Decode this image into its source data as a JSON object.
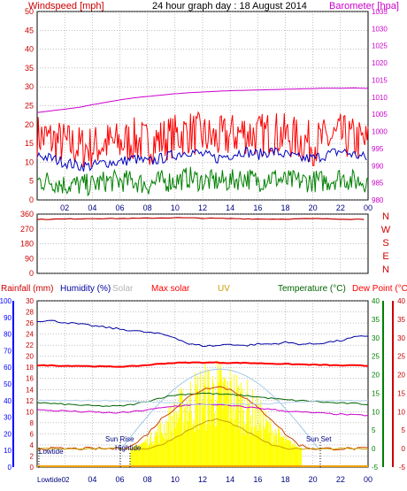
{
  "header": {
    "windspeed_label": "Windspeed [mph]",
    "title": "24 hour graph day : 18 August 2014",
    "barometer_label": "Barometer [hpa]"
  },
  "colors": {
    "wind_gust": "#ff0000",
    "wind_avg": "#0000c0",
    "wind_low": "#008000",
    "barometer": "#cc00cc",
    "direction": "#c00000",
    "humidity": "#0000a0",
    "solar": "#b4b4b4",
    "max_solar": "#ff0000",
    "uv": "#c8a000",
    "temperature": "#006400",
    "dew_point": "#ff0000",
    "rain_axis": "#0000ff",
    "solar_fill": "#ffff00",
    "panel_bg": "#ffffff",
    "grid": "#808080"
  },
  "x_hours": [
    "02",
    "04",
    "06",
    "08",
    "10",
    "12",
    "14",
    "16",
    "18",
    "20",
    "22",
    "00"
  ],
  "chart_data": [
    {
      "type": "line",
      "panel": "wind_barometer",
      "title": "24 hour graph day : 18 August 2014",
      "ylabel_left": "Windspeed [mph]",
      "ylabel_right": "Barometer [hpa]",
      "y_left_ticks": [
        "0",
        "5",
        "10",
        "15",
        "20",
        "25",
        "30",
        "35",
        "40",
        "45",
        "50"
      ],
      "y_right_ticks": [
        "980",
        "985",
        "990",
        "995",
        "1000",
        "1005",
        "1010",
        "1015",
        "1020",
        "1025",
        "1030",
        "1035"
      ],
      "ylim_left": [
        0,
        50
      ],
      "ylim_right": [
        980,
        1035
      ],
      "x": [
        0,
        1,
        2,
        3,
        4,
        5,
        6,
        7,
        8,
        9,
        10,
        11,
        12,
        13,
        14,
        15,
        16,
        17,
        18,
        19,
        20,
        21,
        22,
        23,
        24
      ],
      "series": [
        {
          "name": "",
          "color_key": "barometer",
          "axis": "right",
          "values": [
            1005.5,
            1006,
            1006.5,
            1007,
            1007.8,
            1008.5,
            1009.2,
            1009.8,
            1010.2,
            1010.6,
            1011,
            1011.3,
            1011.5,
            1011.7,
            1011.9,
            1012,
            1012.1,
            1012.2,
            1012.3,
            1012.4,
            1012.5,
            1012.6,
            1012.6,
            1012.7,
            1012.5
          ]
        },
        {
          "name": "",
          "color_key": "wind_gust",
          "axis": "left",
          "values": [
            17,
            16,
            15,
            14,
            14,
            15,
            15,
            16,
            15,
            16,
            17,
            18,
            17,
            16,
            17,
            18,
            17,
            18,
            17,
            16,
            15,
            16,
            17,
            16,
            15
          ]
        },
        {
          "name": "",
          "color_key": "wind_avg",
          "axis": "left",
          "values": [
            12,
            11,
            10,
            9,
            9,
            10,
            10,
            11,
            10,
            11,
            12,
            13,
            12,
            11,
            12,
            13,
            12,
            13,
            12,
            11,
            11,
            12,
            13,
            12,
            11
          ]
        },
        {
          "name": "",
          "color_key": "wind_low",
          "axis": "left",
          "values": [
            5,
            5,
            4,
            4,
            4,
            5,
            5,
            5,
            4,
            5,
            5,
            6,
            5,
            5,
            5,
            6,
            5,
            6,
            5,
            5,
            5,
            5,
            6,
            5,
            5
          ]
        }
      ]
    },
    {
      "type": "line",
      "panel": "wind_direction",
      "y_left_ticks": [
        "0",
        "90",
        "180",
        "270",
        "360"
      ],
      "y_right_labels": [
        "N",
        "W",
        "S",
        "E",
        "N"
      ],
      "ylim": [
        0,
        360
      ],
      "x": [
        0,
        2,
        4,
        6,
        8,
        10,
        12,
        14,
        16,
        18,
        20,
        22,
        24
      ],
      "series": [
        {
          "name": "",
          "color_key": "direction",
          "values": [
            328,
            330,
            333,
            333,
            335,
            338,
            335,
            333,
            330,
            330,
            332,
            330,
            328
          ]
        }
      ]
    },
    {
      "type": "area",
      "panel": "rain_humidity_solar_temp",
      "legend": [
        "Rainfall (mm)",
        "Humidity (%)",
        "Solar",
        "Max solar",
        "UV",
        "Temperature (°C)",
        "Dew Point (°C)"
      ],
      "y_rain_ticks": [
        "0",
        "10",
        "20",
        "30",
        "40",
        "50",
        "60",
        "70",
        "80",
        "90",
        "100"
      ],
      "y_humidity_ticks": [
        "0",
        "2",
        "4",
        "6",
        "8",
        "10",
        "12",
        "14",
        "16",
        "18",
        "20",
        "22",
        "24",
        "26",
        "28",
        "30"
      ],
      "y_temp_ticks": [
        "-5",
        "0",
        "5",
        "10",
        "15",
        "20",
        "25",
        "30",
        "35",
        "40"
      ],
      "y_dew_ticks": [
        "-5",
        "0",
        "5",
        "10",
        "15",
        "20",
        "25",
        "30",
        "35",
        "40"
      ],
      "ylim_humidity": [
        0,
        100
      ],
      "ylim_temp": [
        -5,
        40
      ],
      "annotations": [
        "Lowtide",
        "Lowtide02",
        "Sun Rise",
        "Hightide",
        "Sun Set"
      ],
      "x": [
        0,
        1,
        2,
        3,
        4,
        5,
        6,
        7,
        8,
        9,
        10,
        11,
        12,
        13,
        14,
        15,
        16,
        17,
        18,
        19,
        20,
        21,
        22,
        23,
        24
      ],
      "series": [
        {
          "name": "Humidity (%)",
          "color_key": "humidity",
          "values": [
            88,
            88,
            87,
            86,
            85,
            84,
            83,
            82,
            81,
            80,
            78,
            74,
            73,
            73,
            74,
            73,
            74,
            74,
            75,
            74,
            74,
            75,
            76,
            78,
            79
          ]
        },
        {
          "name": "Temperature (°C)",
          "color_key": "temperature",
          "values": [
            12.5,
            12.2,
            12,
            11.8,
            11.6,
            11.5,
            11.5,
            12,
            12.8,
            13.8,
            14.5,
            14.8,
            15,
            14.8,
            14.6,
            14.4,
            14,
            13.6,
            13.2,
            13,
            12.8,
            12.5,
            12.3,
            12.2,
            12
          ]
        },
        {
          "name": "Dew Point (°C)",
          "color_key": "dew_point",
          "values": [
            22.5,
            22.5,
            22.4,
            22.4,
            22.3,
            22.2,
            22.2,
            22.3,
            22.6,
            23,
            23.2,
            23.3,
            23.3,
            23.3,
            23.2,
            23.2,
            23.1,
            23,
            22.9,
            22.8,
            22.7,
            22.6,
            22.5,
            22.5,
            22.4
          ]
        },
        {
          "name": "Solar",
          "color_key": "solar",
          "values": [
            0,
            0,
            0,
            0,
            0,
            0,
            0,
            0.5,
            3,
            7,
            12,
            17,
            20,
            21,
            20,
            17,
            12,
            7,
            3,
            0.5,
            0,
            0,
            0,
            0,
            0
          ]
        },
        {
          "name": "Max solar",
          "color_key": "max_solar",
          "values": [
            0,
            0,
            0,
            0,
            0,
            0,
            0,
            1,
            4,
            8,
            11,
            14,
            16,
            17,
            16,
            14,
            11,
            8,
            4,
            1,
            0,
            0,
            0,
            0,
            0
          ]
        },
        {
          "name": "UV",
          "color_key": "uv",
          "values": [
            0,
            0,
            0,
            0,
            0,
            0,
            0,
            0,
            0,
            1,
            3,
            5,
            7,
            8,
            7,
            5,
            3,
            1,
            0,
            0,
            0,
            0,
            0,
            0,
            0
          ]
        },
        {
          "name": "",
          "color_key": "barometer",
          "values": [
            10.5,
            10.3,
            10.2,
            10,
            9.9,
            9.7,
            9.7,
            10,
            10.5,
            11,
            11.5,
            11.8,
            12,
            11.9,
            11.6,
            11.3,
            11,
            10.6,
            10.2,
            9.9,
            9.7,
            9.5,
            9.3,
            9.1,
            9
          ]
        },
        {
          "name": "",
          "color_key": "solar",
          "values": [
            13,
            13,
            13,
            13,
            13,
            13,
            13,
            12.8,
            12.6,
            12.5,
            12.3,
            12,
            12,
            12,
            12,
            12,
            12,
            12.2,
            12.4,
            12.6,
            12.8,
            13,
            13,
            13,
            13
          ]
        }
      ]
    }
  ]
}
